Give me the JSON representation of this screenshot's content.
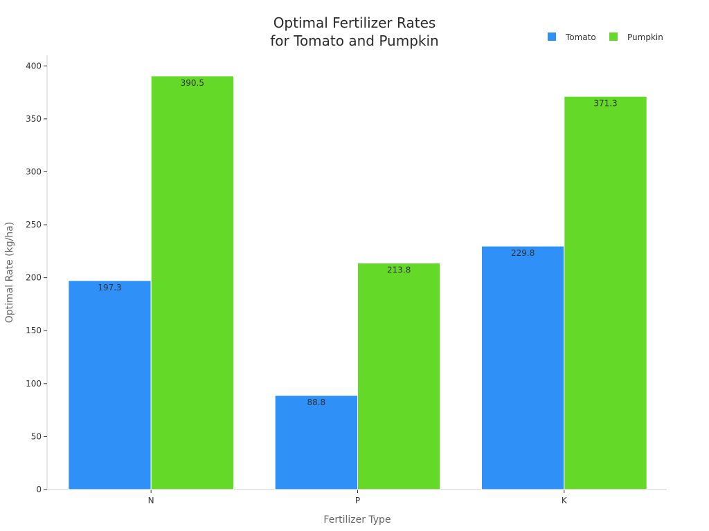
{
  "chart_data": {
    "type": "bar",
    "title_lines": [
      "Optimal Fertilizer Rates",
      "for Tomato and Pumpkin"
    ],
    "xlabel": "Fertilizer Type",
    "ylabel": "Optimal Rate (kg/ha)",
    "categories": [
      "N",
      "P",
      "K"
    ],
    "series": [
      {
        "name": "Tomato",
        "color": "#2f91f7",
        "values": [
          197.3,
          88.8,
          229.8
        ]
      },
      {
        "name": "Pumpkin",
        "color": "#64d928",
        "values": [
          390.5,
          213.8,
          371.3
        ]
      }
    ],
    "ylim": [
      0,
      410
    ],
    "yticks": [
      0,
      50,
      100,
      150,
      200,
      250,
      300,
      350,
      400
    ],
    "grid": false,
    "legend_position": "top-right"
  }
}
